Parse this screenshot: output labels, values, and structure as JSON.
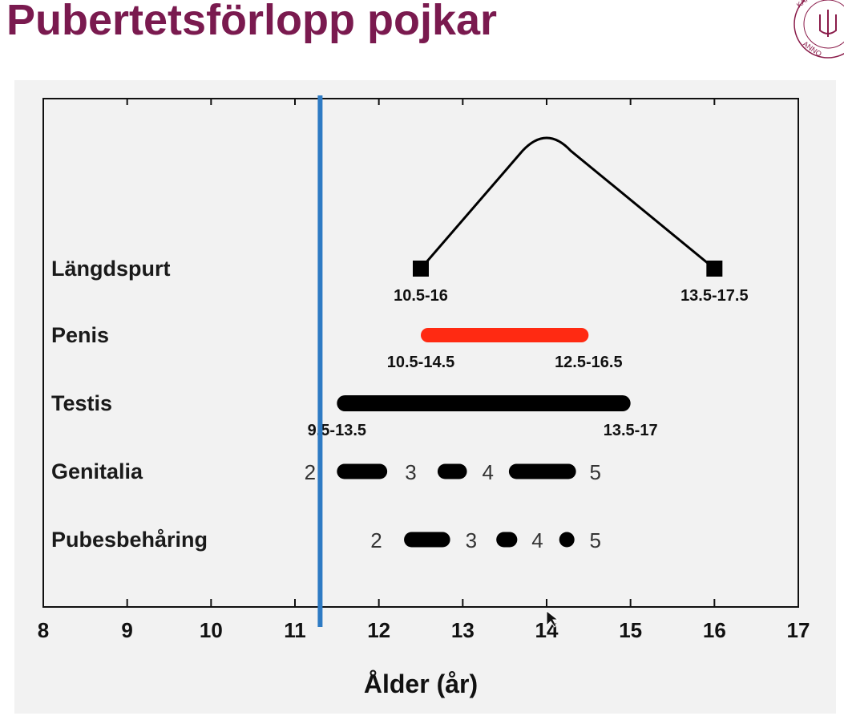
{
  "slide": {
    "title": "Pubertetsförlopp pojkar",
    "logo_text": "KAROLINSKA INSTITUTET · ANNO"
  },
  "chart_data": {
    "type": "range-timeline",
    "xlabel": "Ålder (år)",
    "xlim": [
      8,
      17
    ],
    "xticks": [
      8,
      9,
      10,
      11,
      12,
      13,
      14,
      15,
      16,
      17
    ],
    "marker_line": {
      "x": 11.3,
      "color": "#2e7bc4"
    },
    "rows": [
      {
        "label": "Längdspurt",
        "kind": "curve",
        "start": 12.5,
        "peak": 14.0,
        "end": 16.0,
        "color": "#000000",
        "range_labels": [
          "10.5-16",
          "13.5-17.5"
        ]
      },
      {
        "label": "Penis",
        "kind": "bar",
        "start": 12.5,
        "end": 14.5,
        "color": "#ff2a12",
        "range_labels": [
          "10.5-14.5",
          "12.5-16.5"
        ]
      },
      {
        "label": "Testis",
        "kind": "bar",
        "start": 11.5,
        "end": 15.0,
        "color": "#000000",
        "range_labels": [
          "9.5-13.5",
          "13.5-17"
        ]
      },
      {
        "label": "Genitalia",
        "kind": "stages",
        "color": "#000000",
        "segments": [
          {
            "start": 11.5,
            "end": 12.1
          },
          {
            "start": 12.7,
            "end": 13.05
          },
          {
            "start": 13.55,
            "end": 14.35
          }
        ],
        "stages": [
          {
            "label": "2",
            "x": 11.18
          },
          {
            "label": "3",
            "x": 12.38
          },
          {
            "label": "4",
            "x": 13.3
          },
          {
            "label": "5",
            "x": 14.58
          }
        ]
      },
      {
        "label": "Pubesbehåring",
        "kind": "stages",
        "color": "#000000",
        "segments": [
          {
            "start": 12.3,
            "end": 12.85
          },
          {
            "start": 13.4,
            "end": 13.65
          },
          {
            "start": 14.15,
            "end": 14.3
          }
        ],
        "stages": [
          {
            "label": "2",
            "x": 11.97
          },
          {
            "label": "3",
            "x": 13.1
          },
          {
            "label": "4",
            "x": 13.89
          },
          {
            "label": "5",
            "x": 14.58
          }
        ]
      }
    ]
  }
}
